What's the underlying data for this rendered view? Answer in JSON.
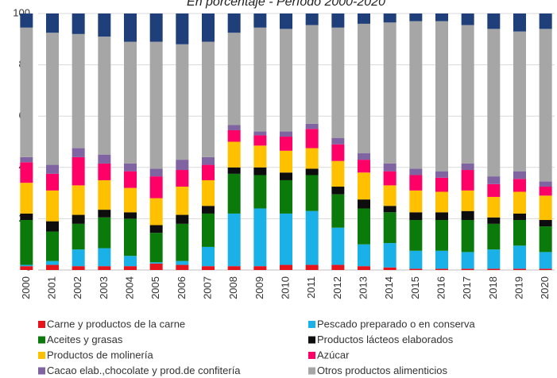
{
  "chart_data": {
    "type": "stacked_bar",
    "title": "En porcentaje - Período 2000-2020",
    "categories": [
      "2000",
      "2001",
      "2002",
      "2003",
      "2004",
      "2005",
      "2006",
      "2007",
      "2008",
      "2009",
      "2010",
      "2011",
      "2012",
      "2013",
      "2014",
      "2015",
      "2016",
      "2017",
      "2018",
      "2019",
      "2020"
    ],
    "series": [
      {
        "name": "Carne y productos de la carne",
        "color": "#e8141c",
        "values": [
          1.5,
          2,
          1.5,
          1.5,
          1.5,
          2.5,
          2,
          1.5,
          1.5,
          1.5,
          2,
          2,
          2,
          1.5,
          1,
          0.5,
          0.5,
          0.5,
          0.5,
          0.5,
          0.5
        ]
      },
      {
        "name": "Pescado preparado o en conserva",
        "color": "#1ab0e8",
        "values": [
          0.5,
          1.5,
          6.5,
          7,
          4,
          0.5,
          1.5,
          7.5,
          20.5,
          22.5,
          20,
          21,
          14.5,
          8.5,
          9.5,
          7,
          7,
          6.5,
          7.5,
          9,
          6.5
        ]
      },
      {
        "name": "Aceites y grasas",
        "color": "#0a7a0a",
        "values": [
          17.5,
          11.5,
          10,
          12,
          14.5,
          11.5,
          14.5,
          13,
          15.5,
          13,
          13,
          14,
          13,
          14,
          12,
          12,
          12,
          12.5,
          10,
          10,
          10
        ]
      },
      {
        "name": "Productos lácteos elaborados",
        "color": "#0d0d0d",
        "values": [
          2.5,
          4,
          3.5,
          3,
          2.5,
          3,
          3.5,
          3,
          2.5,
          3,
          3,
          2.5,
          3,
          3.5,
          2.5,
          3,
          3,
          3.5,
          2.5,
          2.5,
          2.5
        ]
      },
      {
        "name": "Productos de molinería",
        "color": "#ffc000",
        "values": [
          12,
          12,
          11.5,
          11.5,
          9.5,
          10.5,
          11,
          10,
          10,
          8.5,
          8.5,
          8,
          10,
          10.5,
          8,
          8.5,
          8,
          8,
          8,
          8.5,
          9.5
        ]
      },
      {
        "name": "Azúcar",
        "color": "#ff0066",
        "values": [
          8,
          6.5,
          11,
          6.5,
          6.5,
          8.5,
          6.5,
          6,
          4.5,
          4,
          5.5,
          7.5,
          6.5,
          5,
          5.5,
          6,
          5.5,
          8,
          5,
          5,
          3.5
        ]
      },
      {
        "name": "Cacao elab.,chocolate y prod.de confitería",
        "color": "#8064a2",
        "values": [
          2,
          3.5,
          3.5,
          3.5,
          3,
          3,
          4,
          3,
          2,
          1.5,
          2,
          2,
          2.5,
          2.5,
          3,
          2.5,
          2.5,
          2.5,
          3,
          3,
          2
        ]
      },
      {
        "name": "Otros productos alimenticios",
        "color": "#a6a6a6",
        "values": [
          50.5,
          51.5,
          44.5,
          46,
          47.5,
          49.5,
          45,
          45,
          36,
          40.5,
          40,
          38.5,
          43,
          50.5,
          55,
          57.5,
          58.5,
          54,
          57.5,
          54.5,
          59.5
        ]
      },
      {
        "color": "#1f3f7a",
        "values": [
          5.5,
          7.5,
          8,
          9,
          11,
          11,
          12,
          11,
          7.5,
          5.5,
          6,
          4.5,
          5.5,
          4,
          3.5,
          3,
          3,
          4.5,
          6,
          7,
          6
        ]
      }
    ],
    "ylim": [
      0,
      100
    ],
    "yticks": [
      {
        "value": 0,
        "label": "-"
      },
      20,
      40,
      60,
      80,
      100
    ],
    "grid": true
  }
}
